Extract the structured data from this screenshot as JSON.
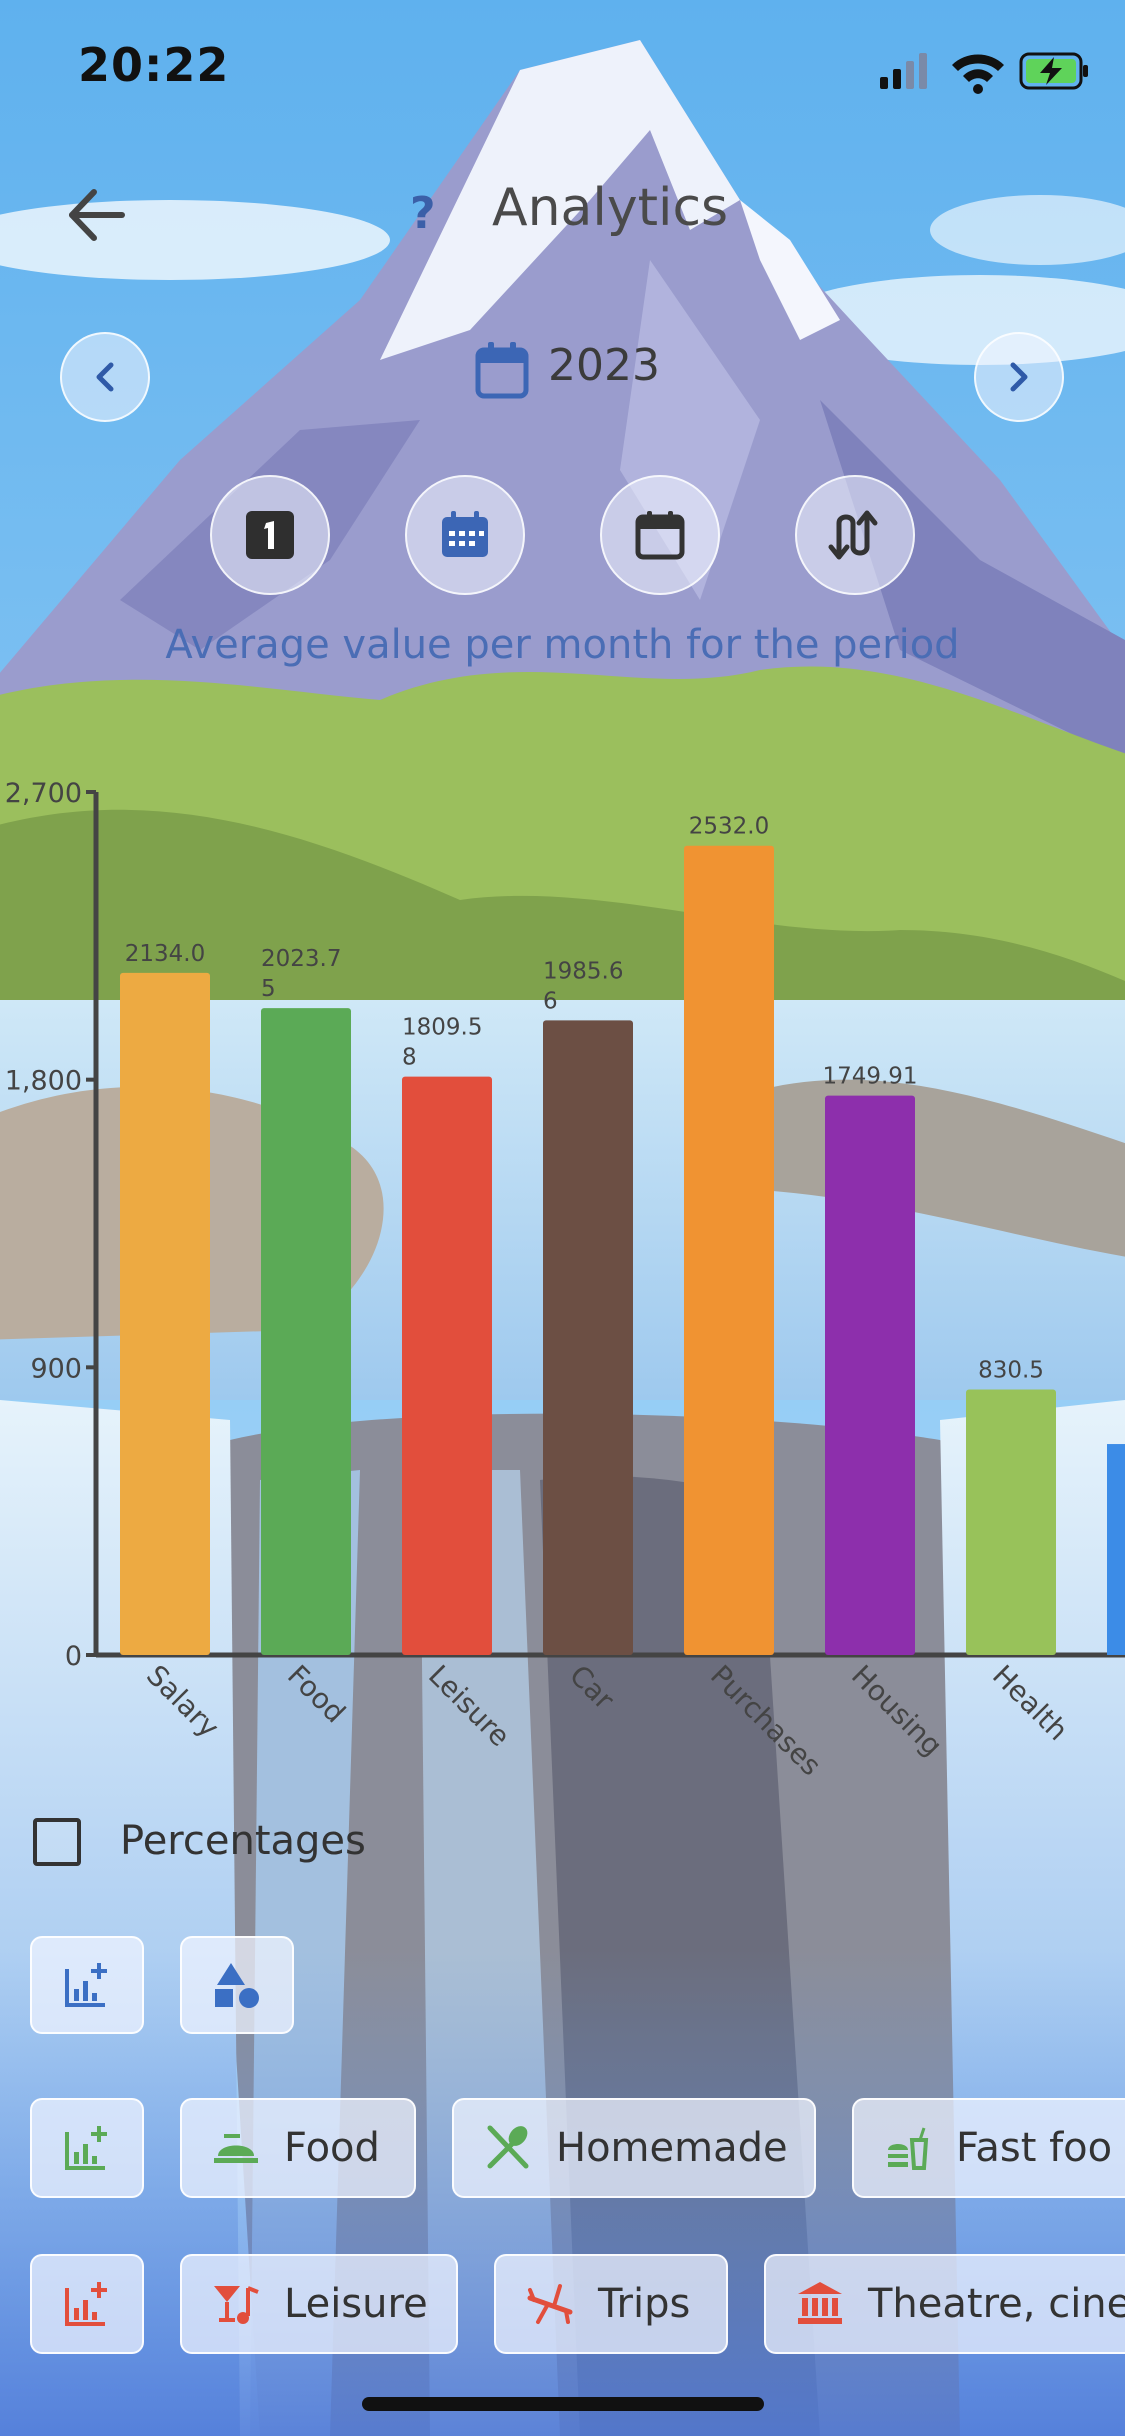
{
  "status_bar": {
    "time": "20:22",
    "icons": [
      "signal-icon",
      "wifi-icon",
      "battery-charging-icon"
    ]
  },
  "header": {
    "title": "Analytics",
    "help_glyph": "?",
    "back_icon": "arrow-left-icon"
  },
  "period": {
    "year": "2023",
    "prev_icon": "chevron-left-icon",
    "next_icon": "chevron-right-icon"
  },
  "modes": [
    "day-one-icon",
    "calendar-month-icon",
    "calendar-year-icon",
    "swap-vertical-icon"
  ],
  "subtitle": "Average value per month for the period",
  "chart_data": {
    "type": "bar",
    "categories": [
      "Salary",
      "Food",
      "Leisure",
      "Car",
      "Purchases",
      "Housing",
      "Health"
    ],
    "values": [
      2134.0,
      2023.75,
      1809.58,
      1985.66,
      2532.0,
      1749.91,
      830.5
    ],
    "labels": [
      "2134.0",
      "2023.75",
      "1809.58",
      "1985.66",
      "2532.0",
      "1749.91",
      "830.5"
    ],
    "colors": [
      "#EDAA42",
      "#5BAA56",
      "#E24E3C",
      "#6C4F44",
      "#F09332",
      "#8D2FAC",
      "#98C25A"
    ],
    "ylim": [
      0,
      2700
    ],
    "yticks": [
      "0",
      "900",
      "1,800",
      "2,700"
    ],
    "ytick_values": [
      0,
      900,
      1800,
      2700
    ],
    "partial_next_bar_color": "#3C8CE7"
  },
  "options": {
    "percentages_label": "Percentages",
    "percentages_checked": false
  },
  "category_rows": [
    {
      "items": [
        {
          "icon": "chart-add-icon",
          "color": "#3B6FC4"
        },
        {
          "icon": "shapes-icon",
          "color": "#3B6FC4"
        }
      ]
    },
    {
      "items": [
        {
          "icon": "chart-add-icon",
          "color": "#5BAA56"
        },
        {
          "icon": "serving-dish-icon",
          "label": "Food",
          "color": "#5BAA56"
        },
        {
          "icon": "utensils-icon",
          "label": "Homemade",
          "color": "#5BAA56"
        },
        {
          "icon": "fast-food-icon",
          "label": "Fast foo",
          "color": "#5BAA56"
        }
      ]
    },
    {
      "items": [
        {
          "icon": "chart-add-icon",
          "color": "#E24E3C"
        },
        {
          "icon": "cocktail-music-icon",
          "label": "Leisure",
          "color": "#E24E3C"
        },
        {
          "icon": "airplane-icon",
          "label": "Trips",
          "color": "#E24E3C"
        },
        {
          "icon": "theatre-icon",
          "label": "Theatre, cine",
          "color": "#E24E3C"
        }
      ]
    }
  ]
}
